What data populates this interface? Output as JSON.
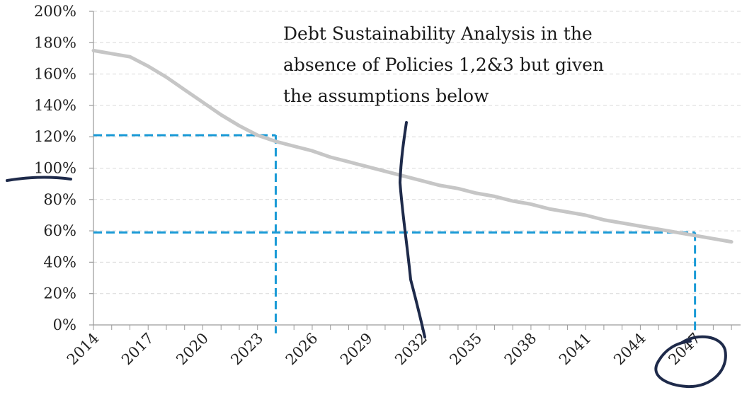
{
  "chart_data": {
    "type": "line",
    "title": "",
    "xlabel": "",
    "ylabel": "",
    "ylim": [
      0,
      200
    ],
    "x_range": [
      2014,
      2049
    ],
    "y_ticks": [
      "0%",
      "20%",
      "40%",
      "60%",
      "80%",
      "100%",
      "120%",
      "140%",
      "160%",
      "180%",
      "200%"
    ],
    "x_ticks": [
      "2014",
      "2017",
      "2020",
      "2023",
      "2026",
      "2029",
      "2032",
      "2035",
      "2038",
      "2041",
      "2044",
      "2047"
    ],
    "grid": "horizontal dashed",
    "series": [
      {
        "color": "#c6c6c6",
        "x": [
          2014,
          2015,
          2016,
          2017,
          2018,
          2019,
          2020,
          2021,
          2022,
          2023,
          2024,
          2025,
          2026,
          2027,
          2028,
          2029,
          2030,
          2031,
          2032,
          2033,
          2034,
          2035,
          2036,
          2037,
          2038,
          2039,
          2040,
          2041,
          2042,
          2043,
          2044,
          2045,
          2046,
          2047,
          2048,
          2049
        ],
        "values": [
          175,
          173,
          171,
          165,
          158,
          150,
          142,
          134,
          127,
          121,
          117,
          114,
          111,
          107,
          104,
          101,
          98,
          95,
          92,
          89,
          87,
          84,
          82,
          79,
          77,
          74,
          72,
          70,
          67,
          65,
          63,
          61,
          59,
          57,
          55,
          53
        ]
      }
    ],
    "reference_lines": [
      {
        "color": "#1a9ad6",
        "style": "dashed",
        "x": 2024,
        "y": 121
      },
      {
        "color": "#1a9ad6",
        "style": "dashed",
        "x": 2047,
        "y": 59
      }
    ],
    "annotation": {
      "lines": [
        "Debt Sustainability Analysis in the",
        "absence of Policies 1,2&3 but given",
        "the assumptions below"
      ]
    },
    "hand_drawn_marks": [
      "vertical-stroke-near-2031",
      "underline-at-100-percent",
      "circle-around-2047"
    ],
    "colors": {
      "axis": "#9a9a9a",
      "grid": "#d9d9d9",
      "marker": "#1e2a4a"
    }
  }
}
